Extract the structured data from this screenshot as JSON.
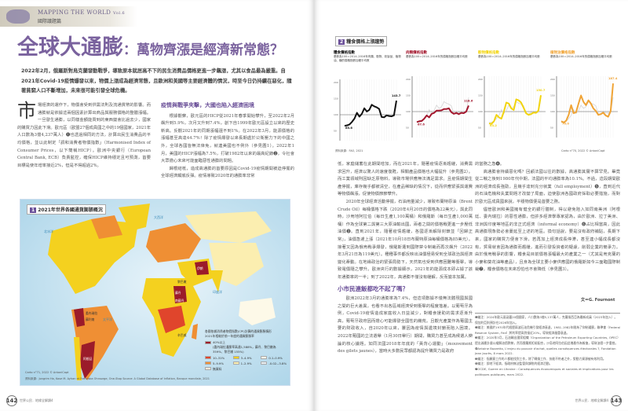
{
  "header": {
    "series": "MAPPING THE WORLD",
    "vol": "Vol.6",
    "section": "國際議題篇"
  },
  "title": {
    "main": "全球大通膨",
    "sub": "：萬物齊漲是經濟新常態？"
  },
  "intro": "2022年2月，俄羅斯對烏克蘭發動戰爭，導致原本就居高不下的民生消費品價格更進一步飆漲，尤其以食品最為嚴重。自2021年Covid-19疫情爆發以來，物價上漲成為經濟常態，且歐洲和美國等主要經濟體的情況，時至今日仍持續在惡化，隨著貧窮人口不斷增加，未來很可能引發全球危機。",
  "left_col1": {
    "drop": "市",
    "text": "場經濟的運作下，物價會受到供需法則及流通貨幣的影響。而通膨就是依據這兩個因素計算出商品與服務價格的整體漲幅。一旦發生通膨，以同樣金額能買到的東西變會比過去少，國家的購買力因此下滑。歐元區（歐盟27個成員國之中的19個國家，2021年人口數為3億4,237萬人）❶也透過相同的方法，計算出民生消費品的平均價格，並以此制定「調和消費者物價指數」（Harmonised Index of Consumer Prices，以下簡稱HICP）。歐洲中央銀行（European Central Bank, ECB）負責監控，確保HICP維持穩定且可預測，首要目標是使年增率接近2%，但是不得超過2%。"
  },
  "left_col2": {
    "heading": "疫情與戰爭夾擊，大國也陷入經濟困境",
    "p1": "根據觀察，歐元區的HICP從2021年春季開始攀升，至2022年2月飆升到5.9%，次月又升到7.4%，創下自1999年歐元區設立以來的歷史新高。反觀2021年的同期漲幅還不到1%。在2022年3月，能源價格的漲幅甚至高達44.7%！除了疫情爆發以來長期處於公衛壓力下的中國之外，全球各國皆無法倖免，就連美國也不例外（參見圖1）。2022年1月，美國的HICP漲幅為7.5%，打破1982年以來的最高紀錄❷，令社會大眾擔心未來可能面臨惡性通膨的問題。",
    "p2": "歸根結柢，造成高通膨的首要原因是Covid-19疫情期間被迫停擺的全球經濟觸底反彈。疫情導致2020年的通膨率非常"
  },
  "map": {
    "fig_no": "1",
    "title": "2021年世界各國通貨膨脹概況",
    "ocean_labels": [
      "北冰洋",
      "太平洋",
      "大西洋",
      "印度洋"
    ],
    "country_labels": [
      "委內瑞拉",
      "蘇利南",
      "阿根廷",
      "伊朗",
      "黎巴嫩",
      "蘇丹",
      "南蘇丹",
      "辛巴威"
    ],
    "legend_title": "各國依據消費者物價指數(CPI)計算的通貨膨脹情形",
    "legend_subtitle": "2021年相較於前一年度的通貨膨脹率",
    "legend": [
      {
        "label": "40%以上",
        "note": "(委內瑞拉通膨率高達1,588%，蘇丹、黎巴嫩為 359%、黎巴嫩 155%)",
        "color": "#9b1b2a"
      },
      {
        "label": "10–31%",
        "color": "#e0452c"
      },
      {
        "label": "5–9.9%",
        "color": "#ef8f34"
      },
      {
        "label": "3–4.9%",
        "color": "#f4d11f"
      },
      {
        "label": "1–2.9%",
        "color": "#fbeeb0"
      },
      {
        "label": "0.1–0.9%",
        "color": "#fdf9e8"
      },
      {
        "label": "-0.02–-3.8%",
        "color": "#e8eef2"
      },
      {
        "label": "無資料",
        "color": "#efe9dc"
      }
    ],
    "credit": "Carto n°71, 2022 © AntoniCapt",
    "source": "資料來源：Jongrim Ha, Kose M. Ayhan et Franziska Ohnsorge, One-Stop Source: A Global Database of Inflation, Banque mondiale, 2021"
  },
  "left_folio": {
    "page": "142",
    "text": "世界公民．地緣全解讀4"
  },
  "charts": {
    "fig_no": "2",
    "title": "糧食價格上漲趨勢",
    "source": "資料來源：FAO, 2021",
    "credit": "Carto n°70, 2022 © AntoniCapt",
    "x_ticks": [
      "2000",
      "02",
      "04",
      "06",
      "08",
      "10",
      "12",
      "14",
      "16",
      "18",
      "2021"
    ],
    "y_ticks": [
      "0",
      "50",
      "100",
      "150",
      "200"
    ],
    "items": [
      {
        "title": "糧食價格指數",
        "note": "基數為100＝2014–2016年肉類、穀物、奶製品、植物油、糖的價格指數加權平均數",
        "color": "#111111",
        "start_label": "65.6",
        "end_label": "143.7",
        "values": [
          65.6,
          67,
          70,
          78,
          88,
          106,
          94,
          103,
          120,
          110,
          115,
          131,
          126,
          123,
          118,
          93,
          92,
          98,
          96,
          95,
          98,
          143.7
        ]
      },
      {
        "title": "肉類價格指數",
        "note": "基數為100＝2014–2016年的價格指數加權平均數",
        "color": "#a3182e",
        "start_label": "67.6",
        "end_label": "118.6",
        "values": [
          67.6,
          70,
          71,
          78,
          88,
          82,
          93,
          96,
          103,
          103,
          104,
          108,
          108,
          110,
          98,
          93,
          96,
          92,
          96,
          95,
          100,
          118.6
        ]
      },
      {
        "title": "穀物價格指數",
        "note": "基數為100＝2014–2016年的價格指數加權平均數",
        "color": "#f2d40f",
        "start_label": "63.2",
        "end_label": "150.7",
        "values": [
          63.2,
          62,
          70,
          90,
          82,
          78,
          100,
          128,
          125,
          110,
          105,
          138,
          135,
          128,
          112,
          95,
          90,
          92,
          97,
          96,
          103,
          150.7
        ]
      },
      {
        "title": "植物油價格指數",
        "note": "基數為100＝2014–2016年的價格指數加權平均數",
        "color": "#f0a436",
        "start_label": "70.0",
        "end_label": "187.4",
        "values": [
          70,
          66,
          72,
          90,
          120,
          95,
          98,
          125,
          150,
          130,
          120,
          135,
          125,
          110,
          102,
          90,
          92,
          97,
          88,
          84,
          101,
          187.4
        ]
      }
    ]
  },
  "right_col1": {
    "p1": "低，家庭儲蓄在此期間增加，而在2021年，隨著疫情逐漸趨緩，消費需求回升，經濟以驚人的速度復甦，相關產品價格也大幅提升（參見圖2）。而工業領域則因缺乏原物料，導致市場供應無法滿足需求。且疫情期間生產停擺，庫存幾乎都被清空，在產品稀缺的情況下，從而供應緊張與運費等物價飆漲，促使物價節節攀升。",
    "p2": "2020年全球經濟活動停擺，石油用量減少，導致布蘭特原油（Brent Crude Oil）每桶價格下跌（2020年4月20日的價格為22美元），與此同時，沙烏地阿拉伯（每日生產1,100萬桶）和俄羅斯（每日生產1,000萬桶）作為全球第二與第三大原油輸出國，兩者之間的價格戰更進一步壓低油價❸。直到2021年，隨著疫情趨緩，各國逐漸解除封鎖並「回歸正常」，油價急遽上漲（2021年10月18日布蘭特原油每桶價格為85美元）。接著又因為俄烏戰爭爆發，俄羅斯遭到國際禁令制裁而再次飆升（2022年3月21日為119美元）。種種事件都反映出油價極易受到全球政治與經濟變化牽動。在地緣政治的緊張局勢下，天然氣也受到供應困難等衝擊，導致電價隨之攀升。歐洲央行的數據顯示，2021年的能源成本即占據了該年通膨率的一半；到了2022年，高通膨不僅沒有緩解，反而變本加厲。",
    "heading": "小市民連飯都吃不起了嗎？",
    "p3": "歐洲2022年3月的通膨率為7.4%，但這項數據不僅無法體現國與國之間的巨大差異，也看不出各區域經濟受到衝擊的程度落差。以葡萄牙為例，Covid-19疫情造成家庭收入日益減少，對糧食援助的需求逐漸升高，葡萄牙政府因而擔心可能爆發全國性的饑荒。且觀光產業作為葡國主要的財政收入，自2020年以來，屢因為疫情與邊境封鎖而陷入困境。2022年葡國的立法選舉（1月30日舉行）期間，購買力甚至成為候選人辯論的核心議題。如同法國2018年年底的「黃背心運動」（mouvement des gilets jaunes），當時大多數民眾都認為提升購買力是政府"
  },
  "right_col2": {
    "p0": "的當務之急❹。",
    "p1": "高通膨會持續惡化嗎？回顧法國以往的數據，高通膨其實不算罕見。畢竟從二戰之後到1980年代中期，法國的平均通膨率為10.1%。不過，這段期間歐洲的經濟成長強勁，且幾乎達到充分就業（full employment）❺，直到近代的石油危機和失業問題才改變了局面，迫使歐洲各國政府採取必要措施，而對於歐元區成員國來說，平穩物價便是首要之務。",
    "p2": "儘管歐洲和美國擁有健全的銀行體制，得以避免陷入如同南美洲（阿根廷、委內瑞拉）的惡性通膨，但許多經濟學專家認為，由於歐洲、拉丁美洲、非洲與印度等地區的非正式經濟（informal economy）❻占比相當高，因此高通膨現象勢必會蔓延至上述的地區。換句話說，要是沒有政府補貼，長期下來，國家的購買力便會下滑，若再加上經濟成長停滯，甚至連小幅成長都沒有，貿易就會因為通膨而趨緩，進而引發投資者的疑慮，削弱企業的競爭力。由於俄烏戰爭的影響，糧食是目前價格漲幅最大的產業之一（尤其是烏克蘭的小麥和葵花油等產品），且身為全球主要小麥供應國的俄羅斯如今三面臨國際制裁❼，糧食價格在未來恐怕也不會降低（參見圖3）。",
    "author": "文＝G. Fournont"
  },
  "footnotes": [
    "❶編注：2024年歐元區涵蓋20個國家，人口數為3億5,137萬人，克羅埃西亞為最新成員（2023年加入）。保加利亞則預計在2026年加入。",
    "❷編注：美國於1970年代經歷兩波石油危機引發經濟衰退，1981–1982年間為了抑制通膨，聯準會（Federal Reserve System, Fed）將利率提高到接近20%，導致經濟嚴重衰退。",
    "❸編注：2020年3月，石油輸出國家組織（Organization of the Petroleum Exporting Countries, OPEC）提出減產計畫以緩解油價跌勢，然而俄羅斯拒絕配合，沙烏地阿拉伯因此增產作為報復，導致油價一步重挫。",
    "❹Antoine Bozzetto, L'enjeu du pouvoir d'achat, quelles conséquences électorales ?, Fondation Jean Jaurès, 8 mars 2022.",
    "❺編注：指願意工作的人都能找到工作，除了轉換工作、技能不符者之外，勞動力資源被有效利用。",
    "❻編注：即地下經濟，指政府無法監管與課稅的經濟活動。",
    "❼OCDE, Guerre en Ukraine : Conséquences économiques et sociales et implications pour les politiques publiques, mars 2022."
  ],
  "right_folio": {
    "page": "143",
    "text": "世界公民．地緣全解讀4"
  }
}
